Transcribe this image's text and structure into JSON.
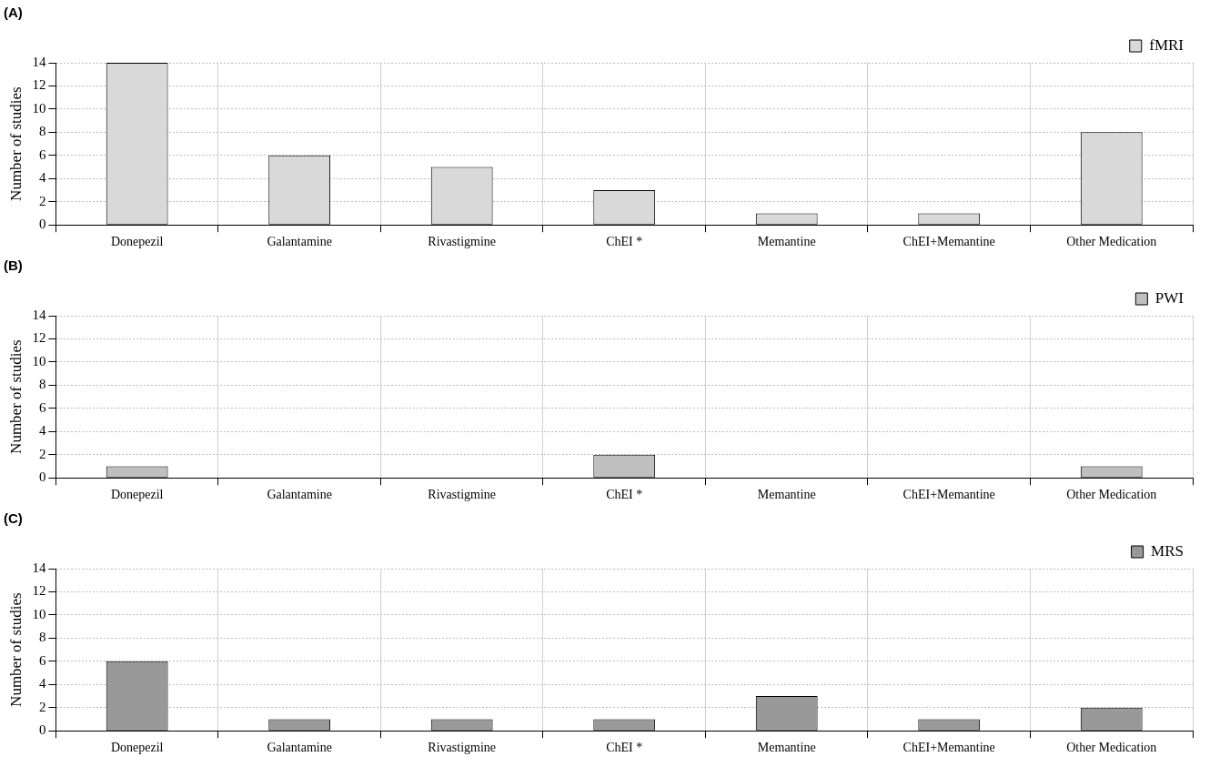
{
  "chart_data": [
    {
      "type": "bar",
      "title": "(A)",
      "ylabel": "Number of studies",
      "categories": [
        "Donepezil",
        "Galantamine",
        "Rivastigmine",
        "ChEI *",
        "Memantine",
        "ChEI+Memantine",
        "Other Medication"
      ],
      "series": [
        {
          "name": "fMRI",
          "color": "#d9d9d9",
          "values": [
            14,
            6,
            5,
            3,
            1,
            1,
            8
          ]
        }
      ],
      "ylim": [
        0,
        14
      ],
      "yticks": [
        0,
        2,
        4,
        6,
        8,
        10,
        12,
        14
      ],
      "grid": true,
      "legend": "top right"
    },
    {
      "type": "bar",
      "title": "(B)",
      "ylabel": "Number of studies",
      "categories": [
        "Donepezil",
        "Galantamine",
        "Rivastigmine",
        "ChEI *",
        "Memantine",
        "ChEI+Memantine",
        "Other Medication"
      ],
      "series": [
        {
          "name": "PWI",
          "color": "#bfbfbf",
          "values": [
            1,
            0,
            0,
            2,
            0,
            0,
            1
          ]
        }
      ],
      "ylim": [
        0,
        14
      ],
      "yticks": [
        0,
        2,
        4,
        6,
        8,
        10,
        12,
        14
      ],
      "grid": true,
      "legend": "top right"
    },
    {
      "type": "bar",
      "title": "(C)",
      "ylabel": "Number of studies",
      "categories": [
        "Donepezil",
        "Galantamine",
        "Rivastigmine",
        "ChEI *",
        "Memantine",
        "ChEI+Memantine",
        "Other Medication"
      ],
      "series": [
        {
          "name": "MRS",
          "color": "#999999",
          "values": [
            6,
            1,
            1,
            1,
            3,
            1,
            2
          ]
        }
      ],
      "ylim": [
        0,
        14
      ],
      "yticks": [
        0,
        2,
        4,
        6,
        8,
        10,
        12,
        14
      ],
      "grid": true,
      "legend": "top right"
    }
  ]
}
